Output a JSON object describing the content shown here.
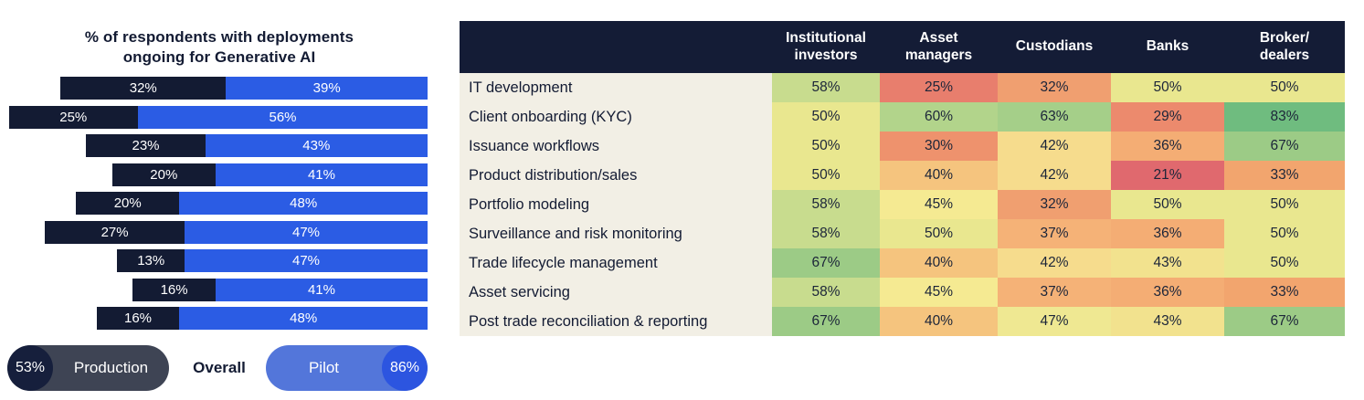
{
  "colors": {
    "navy": "#131b33",
    "bar_production": "#131b33",
    "bar_pilot": "#2b5ce4",
    "legend_production_pill": "#3e4454",
    "legend_production_circle": "#161f3c",
    "legend_pilot_pill": "#5376da",
    "legend_pilot_circle": "#2c55e0",
    "table_header_bg": "#141c36",
    "table_label_bg": "#f2efe5",
    "page_bg": "#ffffff"
  },
  "chart_data": [
    {
      "type": "bar",
      "orientation": "horizontal-stacked",
      "title": "% of respondents with deployments\nongoing for Generative AI",
      "categories": [
        "IT development",
        "Client onboarding (KYC)",
        "Issuance workflows",
        "Product distribution/sales",
        "Portfolio modeling",
        "Surveillance and risk monitoring",
        "Trade lifecycle management",
        "Asset servicing",
        "Post trade reconciliation & reporting"
      ],
      "series": [
        {
          "name": "Production",
          "color": "#131b33",
          "values": [
            32,
            25,
            23,
            20,
            20,
            27,
            13,
            16,
            16
          ]
        },
        {
          "name": "Pilot",
          "color": "#2b5ce4",
          "values": [
            39,
            56,
            43,
            41,
            48,
            47,
            47,
            41,
            48
          ]
        }
      ],
      "value_suffix": "%",
      "bars_right_aligned": true,
      "legend": {
        "production_overall": "53%",
        "production_label": "Production",
        "overall_label": "Overall",
        "pilot_label": "Pilot",
        "pilot_overall": "86%"
      }
    },
    {
      "type": "heatmap",
      "columns": [
        "Institutional\ninvestors",
        "Asset\nmanagers",
        "Custodians",
        "Banks",
        "Broker/\ndealers"
      ],
      "rows": [
        {
          "label": "IT development",
          "values": [
            58,
            25,
            32,
            50,
            50
          ]
        },
        {
          "label": "Client onboarding (KYC)",
          "values": [
            50,
            60,
            63,
            29,
            83
          ]
        },
        {
          "label": "Issuance workflows",
          "values": [
            50,
            30,
            42,
            36,
            67
          ]
        },
        {
          "label": "Product distribution/sales",
          "values": [
            50,
            40,
            42,
            21,
            33
          ]
        },
        {
          "label": "Portfolio modeling",
          "values": [
            58,
            45,
            32,
            50,
            50
          ]
        },
        {
          "label": "Surveillance and risk monitoring",
          "values": [
            58,
            50,
            37,
            36,
            50
          ]
        },
        {
          "label": "Trade lifecycle management",
          "values": [
            67,
            40,
            42,
            43,
            50
          ]
        },
        {
          "label": "Asset servicing",
          "values": [
            58,
            45,
            37,
            36,
            33
          ]
        },
        {
          "label": "Post trade reconciliation & reporting",
          "values": [
            67,
            40,
            47,
            43,
            67
          ]
        }
      ],
      "value_suffix": "%",
      "value_colors": {
        "21": "#e0696e",
        "25": "#e87e6d",
        "29": "#ec8a6d",
        "30": "#ee926d",
        "32": "#f09f70",
        "33": "#f2a56e",
        "36": "#f4ad74",
        "37": "#f5b277",
        "40": "#f5c47e",
        "42": "#f6dc8d",
        "43": "#f2e28e",
        "45": "#f5ea92",
        "47": "#efe892",
        "50": "#e9e78f",
        "58": "#c8dc8e",
        "60": "#b2d48b",
        "63": "#a5cf89",
        "67": "#9ccb86",
        "83": "#6fbc7f"
      }
    }
  ]
}
